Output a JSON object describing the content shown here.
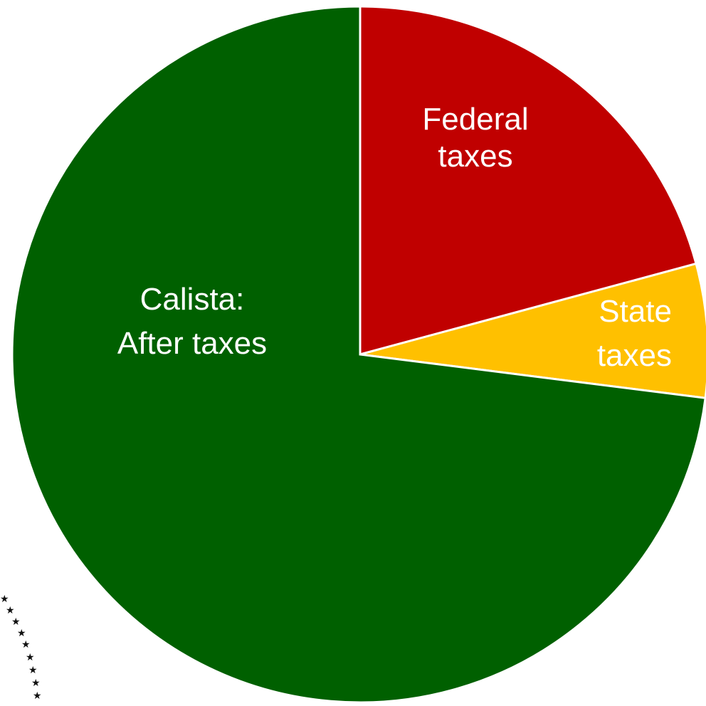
{
  "chart_data": {
    "type": "pie",
    "title": "",
    "slices": [
      {
        "label_lines": [
          "Federal",
          "taxes"
        ],
        "value": 20.8,
        "color": "#c00000"
      },
      {
        "label_lines": [
          "State",
          "taxes"
        ],
        "value": 6.2,
        "color": "#ffc000"
      },
      {
        "label_lines": [
          "Calista:",
          "After taxes"
        ],
        "value": 73.0,
        "color": "#006000"
      }
    ],
    "start_angle_deg": 0,
    "direction": "clockwise",
    "legend": "none"
  }
}
